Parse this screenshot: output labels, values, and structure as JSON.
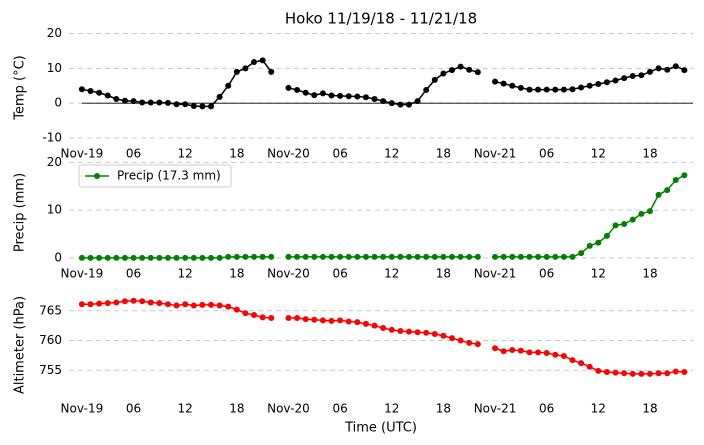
{
  "chart_data": [
    {
      "type": "line",
      "title": "Hoko 11/19/18 - 11/21/18",
      "ylabel": "Temp (°C)",
      "x": [
        0,
        1,
        2,
        3,
        4,
        5,
        6,
        7,
        8,
        9,
        10,
        11,
        12,
        13,
        14,
        15,
        16,
        17,
        18,
        19,
        20,
        21,
        22,
        23,
        24,
        25,
        26,
        27,
        28,
        29,
        30,
        31,
        32,
        33,
        34,
        35,
        36,
        37,
        38,
        39,
        40,
        41,
        42,
        43,
        44,
        45,
        46,
        47,
        48,
        49,
        50,
        51,
        52,
        53,
        54,
        55,
        56,
        57,
        58,
        59,
        60,
        61,
        62,
        63,
        64,
        65,
        66,
        67,
        68,
        69,
        70
      ],
      "xlim": [
        -1.5,
        71
      ],
      "xticks": [
        {
          "value": 0,
          "label": "Nov-19"
        },
        {
          "value": 6,
          "label": "06"
        },
        12,
        18,
        {
          "value": 24,
          "label": "Nov-20"
        },
        {
          "value": 30,
          "label": "06"
        },
        {
          "value": 36,
          "label": "12"
        },
        {
          "value": 42,
          "label": "18"
        },
        {
          "value": 48,
          "label": "Nov-21"
        },
        {
          "value": 54,
          "label": "06"
        },
        {
          "value": 60,
          "label": "12"
        },
        {
          "value": 66,
          "label": "18"
        }
      ],
      "ylim": [
        -12,
        21
      ],
      "yticks": [
        -10,
        0,
        10,
        20
      ],
      "grid": true,
      "hline": 0,
      "series": [
        {
          "color": "#000000",
          "values": [
            4,
            3.5,
            3,
            2.2,
            1.2,
            0.7,
            0.6,
            0.2,
            0.2,
            0.2,
            0.1,
            -0.3,
            -0.3,
            -0.8,
            -0.9,
            -0.9,
            1.8,
            5,
            9,
            10,
            11.8,
            12.3,
            9,
            null,
            4.4,
            3.8,
            3,
            2.3,
            2.8,
            2.2,
            2.1,
            2,
            1.9,
            1.7,
            1.2,
            0.6,
            0,
            -0.4,
            -0.4,
            0.6,
            3.8,
            6.7,
            8.5,
            9.5,
            10.5,
            9.6,
            8.9,
            null,
            6.2,
            5.6,
            5,
            4.4,
            3.9,
            3.9,
            3.9,
            3.9,
            3.9,
            4,
            4.5,
            5,
            5.5,
            6,
            6.5,
            7.2,
            7.8,
            8,
            9,
            10,
            9.6,
            10.6,
            9.5
          ]
        }
      ]
    },
    {
      "type": "line",
      "ylabel": "Precip (mm)",
      "legend": "upper left",
      "x": [
        0,
        1,
        2,
        3,
        4,
        5,
        6,
        7,
        8,
        9,
        10,
        11,
        12,
        13,
        14,
        15,
        16,
        17,
        18,
        19,
        20,
        21,
        22,
        23,
        24,
        25,
        26,
        27,
        28,
        29,
        30,
        31,
        32,
        33,
        34,
        35,
        36,
        37,
        38,
        39,
        40,
        41,
        42,
        43,
        44,
        45,
        46,
        47,
        48,
        49,
        50,
        51,
        52,
        53,
        54,
        55,
        56,
        57,
        58,
        59,
        60,
        61,
        62,
        63,
        64,
        65,
        66,
        67,
        68,
        69,
        70
      ],
      "xlim": [
        -1.5,
        71
      ],
      "xticks": [
        {
          "value": 0,
          "label": "Nov-19"
        },
        {
          "value": 6,
          "label": "06"
        },
        12,
        18,
        {
          "value": 24,
          "label": "Nov-20"
        },
        {
          "value": 30,
          "label": "06"
        },
        {
          "value": 36,
          "label": "12"
        },
        {
          "value": 42,
          "label": "18"
        },
        {
          "value": 48,
          "label": "Nov-21"
        },
        {
          "value": 54,
          "label": "06"
        },
        {
          "value": 60,
          "label": "12"
        },
        {
          "value": 66,
          "label": "18"
        }
      ],
      "ylim": [
        -1.5,
        20.5
      ],
      "yticks": [
        0,
        10,
        20
      ],
      "grid": true,
      "series": [
        {
          "name": "Precip (17.3 mm)",
          "color": "#008000",
          "values": [
            0,
            0,
            0,
            0,
            0,
            0,
            0,
            0,
            0,
            0,
            0,
            0,
            0,
            0,
            0,
            0,
            0,
            0.2,
            0.2,
            0.2,
            0.2,
            0.2,
            0.2,
            null,
            0.2,
            0.2,
            0.2,
            0.2,
            0.2,
            0.2,
            0.2,
            0.2,
            0.2,
            0.2,
            0.2,
            0.2,
            0.2,
            0.2,
            0.2,
            0.2,
            0.2,
            0.2,
            0.2,
            0.2,
            0.2,
            0.2,
            0.2,
            null,
            0.2,
            0.2,
            0.2,
            0.2,
            0.2,
            0.2,
            0.2,
            0.2,
            0.2,
            0.2,
            1,
            2.5,
            3.2,
            4.6,
            6.8,
            7.1,
            8,
            9.2,
            9.8,
            13.2,
            14.2,
            16.3,
            17.3
          ]
        }
      ]
    },
    {
      "type": "line",
      "ylabel": "Altimeter (hPa)",
      "xlabel": "Time (UTC)",
      "x": [
        0,
        1,
        2,
        3,
        4,
        5,
        6,
        7,
        8,
        9,
        10,
        11,
        12,
        13,
        14,
        15,
        16,
        17,
        18,
        19,
        20,
        21,
        22,
        23,
        24,
        25,
        26,
        27,
        28,
        29,
        30,
        31,
        32,
        33,
        34,
        35,
        36,
        37,
        38,
        39,
        40,
        41,
        42,
        43,
        44,
        45,
        46,
        47,
        48,
        49,
        50,
        51,
        52,
        53,
        54,
        55,
        56,
        57,
        58,
        59,
        60,
        61,
        62,
        63,
        64,
        65,
        66,
        67,
        68,
        69,
        70
      ],
      "xlim": [
        -1.5,
        71
      ],
      "xticks": [
        {
          "value": 0,
          "label": "Nov-19"
        },
        {
          "value": 6,
          "label": "06"
        },
        12,
        18,
        {
          "value": 24,
          "label": "Nov-20"
        },
        {
          "value": 30,
          "label": "06"
        },
        {
          "value": 36,
          "label": "12"
        },
        {
          "value": 42,
          "label": "18"
        },
        {
          "value": 48,
          "label": "Nov-21"
        },
        {
          "value": 54,
          "label": "06"
        },
        {
          "value": 60,
          "label": "12"
        },
        {
          "value": 66,
          "label": "18"
        }
      ],
      "ylim": [
        750,
        768.5
      ],
      "yticks": [
        755,
        760,
        765
      ],
      "grid": true,
      "series": [
        {
          "color": "#ff0000",
          "values": [
            766.1,
            766.1,
            766.2,
            766.3,
            766.4,
            766.6,
            766.7,
            766.6,
            766.4,
            766.3,
            766.1,
            765.9,
            766.1,
            765.9,
            766,
            766,
            765.9,
            765.7,
            765.2,
            764.6,
            764.3,
            763.9,
            763.8,
            null,
            763.8,
            763.8,
            763.6,
            763.5,
            763.4,
            763.3,
            763.4,
            763.2,
            763.1,
            762.8,
            762.5,
            762.1,
            761.8,
            761.6,
            761.5,
            761.4,
            761.3,
            761.1,
            760.8,
            760.4,
            760,
            759.6,
            759.4,
            null,
            758.7,
            758.2,
            758.4,
            758.3,
            758,
            758,
            757.9,
            757.6,
            757.4,
            756.7,
            756.2,
            755.6,
            754.9,
            754.7,
            754.6,
            754.5,
            754.4,
            754.4,
            754.4,
            754.5,
            754.5,
            754.8,
            754.7
          ]
        }
      ]
    }
  ]
}
